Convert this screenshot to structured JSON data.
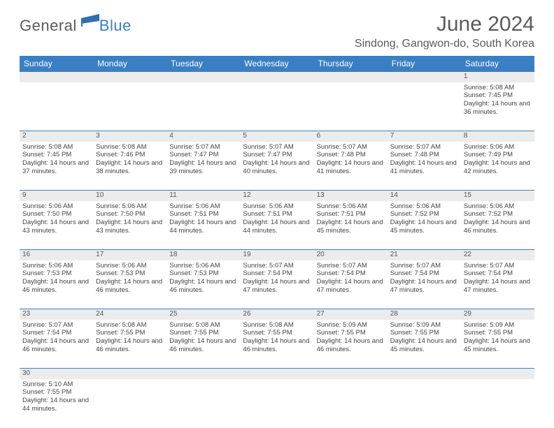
{
  "logo": {
    "text1": "General",
    "text2": "Blue",
    "flag_color": "#2f6fb0"
  },
  "title": "June 2024",
  "location": "Sindong, Gangwon-do, South Korea",
  "colors": {
    "header_bg": "#3a7fc4",
    "header_text": "#ffffff",
    "daynum_bg": "#ececec",
    "divider": "#3a7fc4",
    "body_text": "#444444",
    "page_bg": "#ffffff"
  },
  "day_headers": [
    "Sunday",
    "Monday",
    "Tuesday",
    "Wednesday",
    "Thursday",
    "Friday",
    "Saturday"
  ],
  "weeks": [
    [
      null,
      null,
      null,
      null,
      null,
      null,
      {
        "n": "1",
        "sr": "5:08 AM",
        "ss": "7:45 PM",
        "dl": "14 hours and 36 minutes."
      }
    ],
    [
      {
        "n": "2",
        "sr": "5:08 AM",
        "ss": "7:45 PM",
        "dl": "14 hours and 37 minutes."
      },
      {
        "n": "3",
        "sr": "5:08 AM",
        "ss": "7:46 PM",
        "dl": "14 hours and 38 minutes."
      },
      {
        "n": "4",
        "sr": "5:07 AM",
        "ss": "7:47 PM",
        "dl": "14 hours and 39 minutes."
      },
      {
        "n": "5",
        "sr": "5:07 AM",
        "ss": "7:47 PM",
        "dl": "14 hours and 40 minutes."
      },
      {
        "n": "6",
        "sr": "5:07 AM",
        "ss": "7:48 PM",
        "dl": "14 hours and 41 minutes."
      },
      {
        "n": "7",
        "sr": "5:07 AM",
        "ss": "7:48 PM",
        "dl": "14 hours and 41 minutes."
      },
      {
        "n": "8",
        "sr": "5:06 AM",
        "ss": "7:49 PM",
        "dl": "14 hours and 42 minutes."
      }
    ],
    [
      {
        "n": "9",
        "sr": "5:06 AM",
        "ss": "7:50 PM",
        "dl": "14 hours and 43 minutes."
      },
      {
        "n": "10",
        "sr": "5:06 AM",
        "ss": "7:50 PM",
        "dl": "14 hours and 43 minutes."
      },
      {
        "n": "11",
        "sr": "5:06 AM",
        "ss": "7:51 PM",
        "dl": "14 hours and 44 minutes."
      },
      {
        "n": "12",
        "sr": "5:06 AM",
        "ss": "7:51 PM",
        "dl": "14 hours and 44 minutes."
      },
      {
        "n": "13",
        "sr": "5:06 AM",
        "ss": "7:51 PM",
        "dl": "14 hours and 45 minutes."
      },
      {
        "n": "14",
        "sr": "5:06 AM",
        "ss": "7:52 PM",
        "dl": "14 hours and 45 minutes."
      },
      {
        "n": "15",
        "sr": "5:06 AM",
        "ss": "7:52 PM",
        "dl": "14 hours and 46 minutes."
      }
    ],
    [
      {
        "n": "16",
        "sr": "5:06 AM",
        "ss": "7:53 PM",
        "dl": "14 hours and 46 minutes."
      },
      {
        "n": "17",
        "sr": "5:06 AM",
        "ss": "7:53 PM",
        "dl": "14 hours and 46 minutes."
      },
      {
        "n": "18",
        "sr": "5:06 AM",
        "ss": "7:53 PM",
        "dl": "14 hours and 46 minutes."
      },
      {
        "n": "19",
        "sr": "5:07 AM",
        "ss": "7:54 PM",
        "dl": "14 hours and 47 minutes."
      },
      {
        "n": "20",
        "sr": "5:07 AM",
        "ss": "7:54 PM",
        "dl": "14 hours and 47 minutes."
      },
      {
        "n": "21",
        "sr": "5:07 AM",
        "ss": "7:54 PM",
        "dl": "14 hours and 47 minutes."
      },
      {
        "n": "22",
        "sr": "5:07 AM",
        "ss": "7:54 PM",
        "dl": "14 hours and 47 minutes."
      }
    ],
    [
      {
        "n": "23",
        "sr": "5:07 AM",
        "ss": "7:54 PM",
        "dl": "14 hours and 46 minutes."
      },
      {
        "n": "24",
        "sr": "5:08 AM",
        "ss": "7:55 PM",
        "dl": "14 hours and 46 minutes."
      },
      {
        "n": "25",
        "sr": "5:08 AM",
        "ss": "7:55 PM",
        "dl": "14 hours and 46 minutes."
      },
      {
        "n": "26",
        "sr": "5:08 AM",
        "ss": "7:55 PM",
        "dl": "14 hours and 46 minutes."
      },
      {
        "n": "27",
        "sr": "5:09 AM",
        "ss": "7:55 PM",
        "dl": "14 hours and 46 minutes."
      },
      {
        "n": "28",
        "sr": "5:09 AM",
        "ss": "7:55 PM",
        "dl": "14 hours and 45 minutes."
      },
      {
        "n": "29",
        "sr": "5:09 AM",
        "ss": "7:55 PM",
        "dl": "14 hours and 45 minutes."
      }
    ],
    [
      {
        "n": "30",
        "sr": "5:10 AM",
        "ss": "7:55 PM",
        "dl": "14 hours and 44 minutes."
      },
      null,
      null,
      null,
      null,
      null,
      null
    ]
  ],
  "labels": {
    "sunrise": "Sunrise:",
    "sunset": "Sunset:",
    "daylight": "Daylight:"
  }
}
